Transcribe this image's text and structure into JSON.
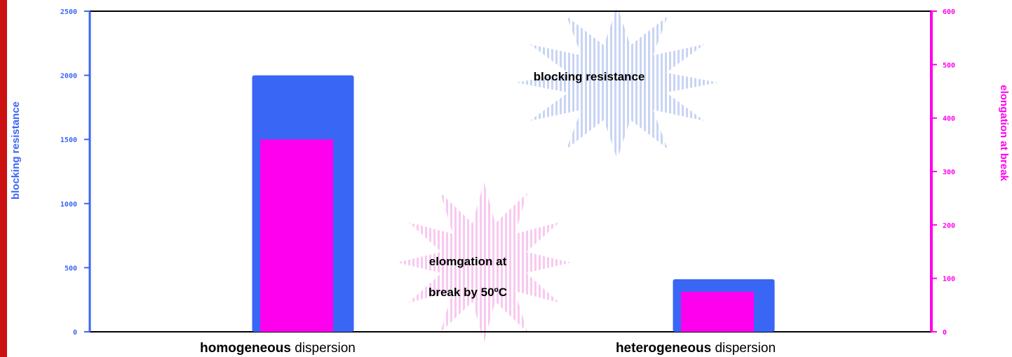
{
  "colors": {
    "primary_series": "#3a66f5",
    "secondary_series": "#ff00ee",
    "frame": "#000000",
    "left_strip": "#cc1111",
    "primary_star_stripes": "#c8d4f4",
    "secondary_star_stripes": "#f9c8f0"
  },
  "chart_data": {
    "type": "bar",
    "categories": [
      {
        "bold": "homogeneous",
        "rest": "dispersion"
      },
      {
        "bold": "heterogeneous",
        "rest": "dispersion"
      }
    ],
    "series": [
      {
        "name": "blocking resistance",
        "axis": "left",
        "values": [
          2000,
          410
        ]
      },
      {
        "name": "elongation at break by 50ºC",
        "axis": "right",
        "values": [
          360,
          75
        ]
      }
    ],
    "left_axis": {
      "label": "blocking resistance",
      "ylim": [
        0,
        2500
      ],
      "ticks": [
        "0",
        "500",
        "1000",
        "1500",
        "2000",
        "2500"
      ]
    },
    "right_axis": {
      "label": "elongation at break",
      "ylim": [
        0,
        600
      ],
      "ticks": [
        "0",
        "100",
        "200",
        "300",
        "400",
        "500",
        "600"
      ]
    },
    "annotations": [
      {
        "series": "primary",
        "lines": [
          "blocking resistance"
        ]
      },
      {
        "series": "secondary",
        "lines": [
          "elomgation at",
          "break by 50ºC"
        ]
      }
    ],
    "grid": false,
    "legend": "none"
  }
}
